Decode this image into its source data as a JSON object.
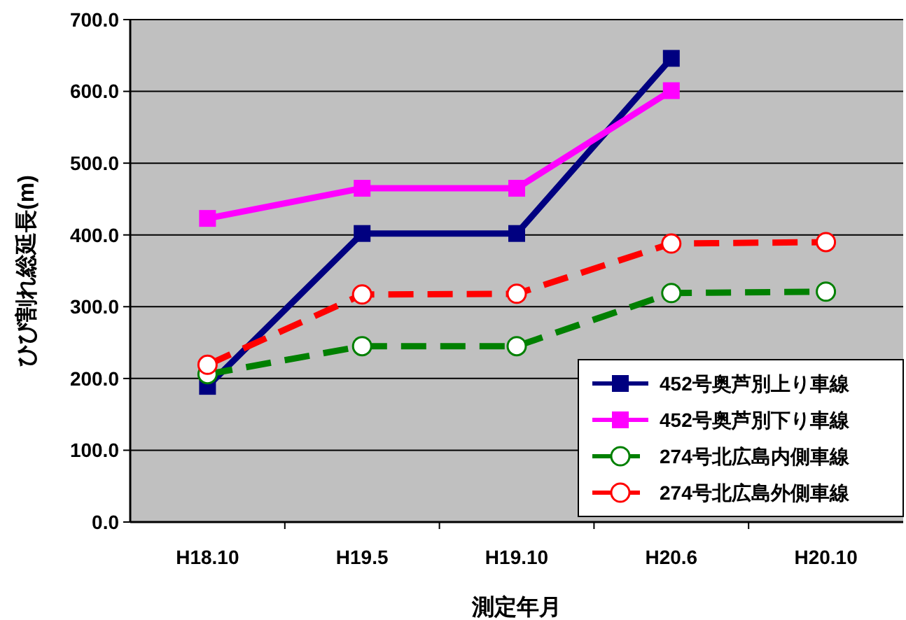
{
  "chart_data": {
    "type": "line",
    "xlabel": "測定年月",
    "ylabel": "ひび割れ総延長(m)",
    "categories": [
      "H18.10",
      "H19.5",
      "H19.10",
      "H20.6",
      "H20.10"
    ],
    "series": [
      {
        "name": "452号奥芦別上り車線",
        "color": "#000080",
        "marker": "square",
        "line_style": "solid",
        "values": [
          189,
          402,
          402,
          646,
          null
        ]
      },
      {
        "name": "452号奥芦別下り車線",
        "color": "#ff00ff",
        "marker": "square",
        "line_style": "solid",
        "values": [
          423,
          465,
          465,
          601,
          null
        ]
      },
      {
        "name": "274号北広島内側車線",
        "color": "#008000",
        "marker": "circle",
        "line_style": "dashed",
        "values": [
          206,
          245,
          245,
          319,
          321
        ]
      },
      {
        "name": "274号北広島外側車線",
        "color": "#ff0000",
        "marker": "circle",
        "line_style": "dashed",
        "values": [
          219,
          317,
          318,
          388,
          390
        ]
      }
    ],
    "ylim": [
      0,
      700
    ],
    "yticks": [
      {
        "value": 0,
        "label": "0.0"
      },
      {
        "value": 100,
        "label": "100.0"
      },
      {
        "value": 200,
        "label": "200.0"
      },
      {
        "value": 300,
        "label": "300.0"
      },
      {
        "value": 400,
        "label": "400.0"
      },
      {
        "value": 500,
        "label": "500.0"
      },
      {
        "value": 600,
        "label": "600.0"
      },
      {
        "value": 700,
        "label": "700.0"
      }
    ],
    "grid": "y",
    "legend": "bottom right"
  }
}
